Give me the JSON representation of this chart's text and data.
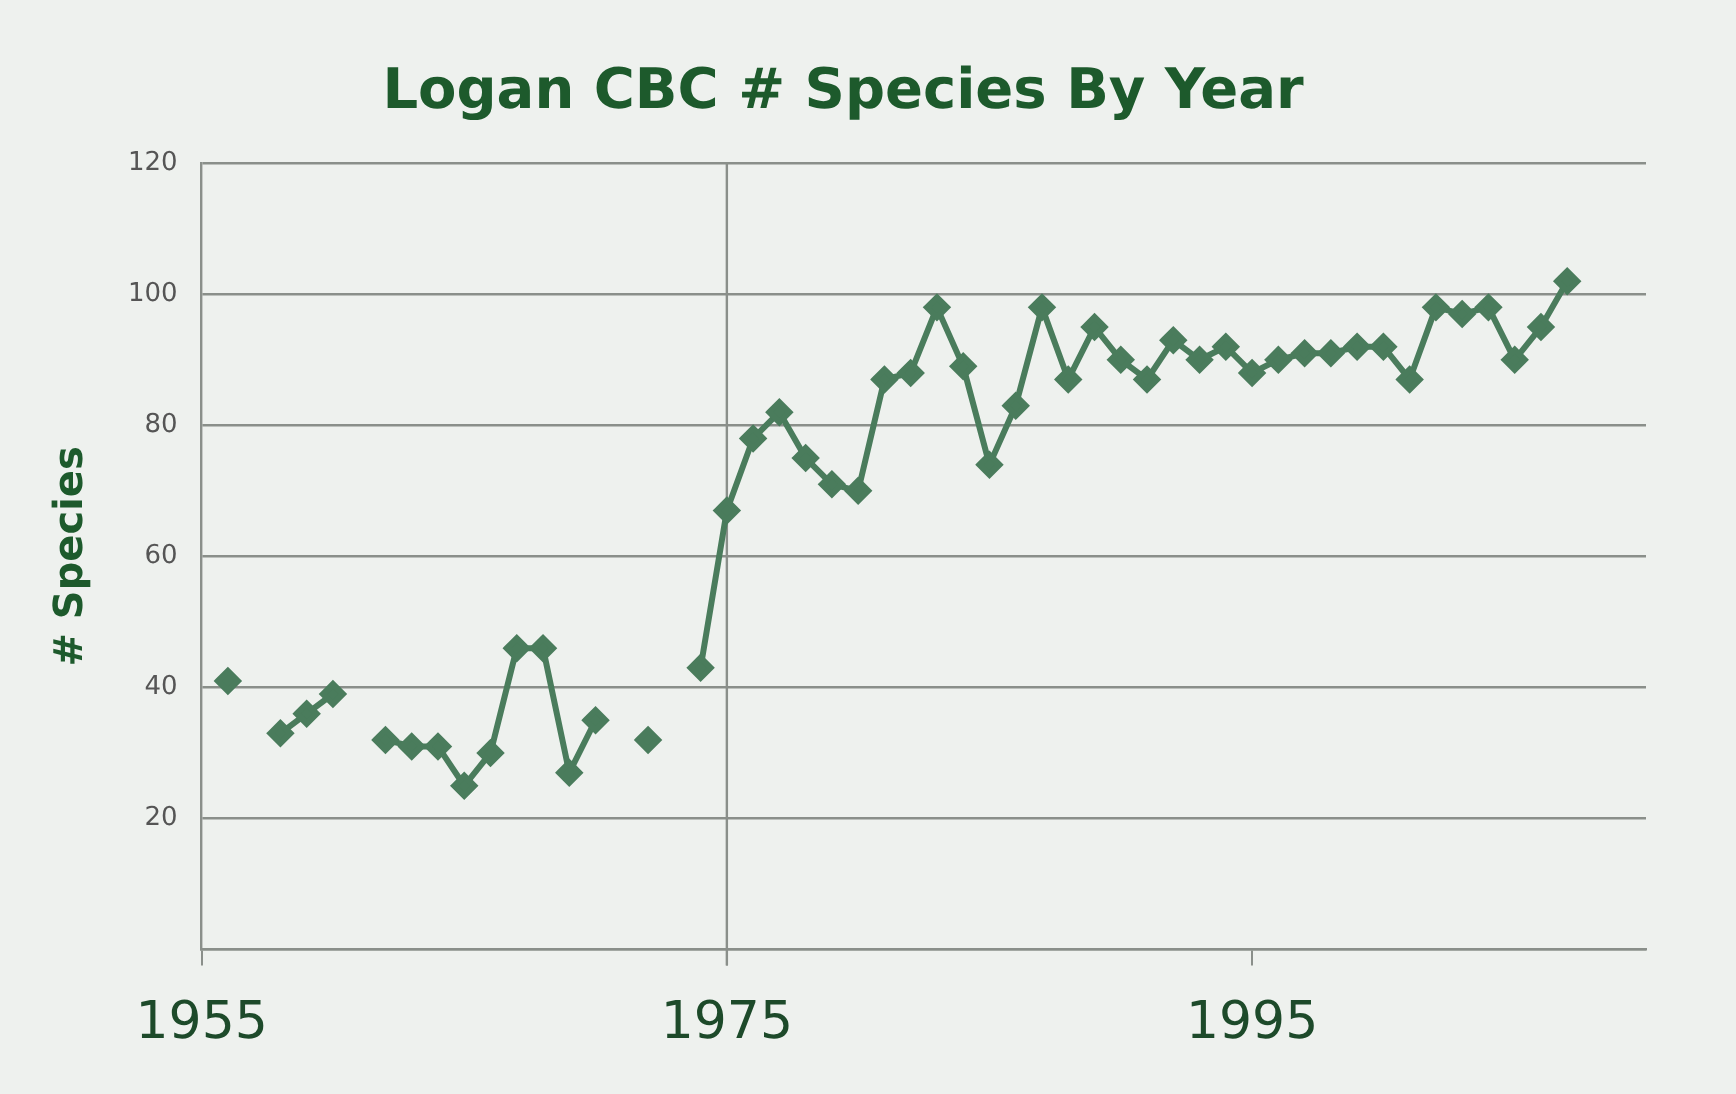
{
  "chart_data": {
    "type": "line",
    "title": "Logan CBC # Species By Year",
    "ylabel": "# Species",
    "x": [
      1956,
      1957,
      1958,
      1959,
      1960,
      1961,
      1962,
      1963,
      1964,
      1965,
      1966,
      1967,
      1968,
      1969,
      1970,
      1971,
      1972,
      1973,
      1974,
      1975,
      1976,
      1977,
      1978,
      1979,
      1980,
      1981,
      1982,
      1983,
      1984,
      1985,
      1986,
      1987,
      1988,
      1989,
      1990,
      1991,
      1992,
      1993,
      1994,
      1995,
      1996,
      1997,
      1998,
      1999,
      2000,
      2001,
      2002,
      2003,
      2004,
      2005,
      2006,
      2007
    ],
    "series": [
      {
        "color": "#4a7c5c",
        "values": [
          41,
          null,
          33,
          36,
          39,
          null,
          32,
          31,
          31,
          25,
          30,
          46,
          46,
          27,
          35,
          null,
          32,
          null,
          43,
          67,
          78,
          82,
          75,
          71,
          70,
          87,
          88,
          98,
          89,
          74,
          83,
          98,
          87,
          95,
          90,
          87,
          93,
          90,
          92,
          88,
          90,
          91,
          91,
          92,
          92,
          87,
          98,
          97,
          98,
          90,
          95,
          102
        ]
      }
    ],
    "xlim": [
      1955,
      2010
    ],
    "xticks": [
      1955,
      1975,
      1995
    ],
    "ylim": [
      0,
      120
    ],
    "yticks": [
      {
        "value": 0,
        "label": null
      },
      20,
      40,
      60,
      80,
      100,
      120
    ],
    "ref_lines": [
      {
        "axis": "x",
        "value": 1975
      }
    ],
    "grid": "y",
    "legend": false,
    "marker": "diamond",
    "line_style": "solid"
  }
}
